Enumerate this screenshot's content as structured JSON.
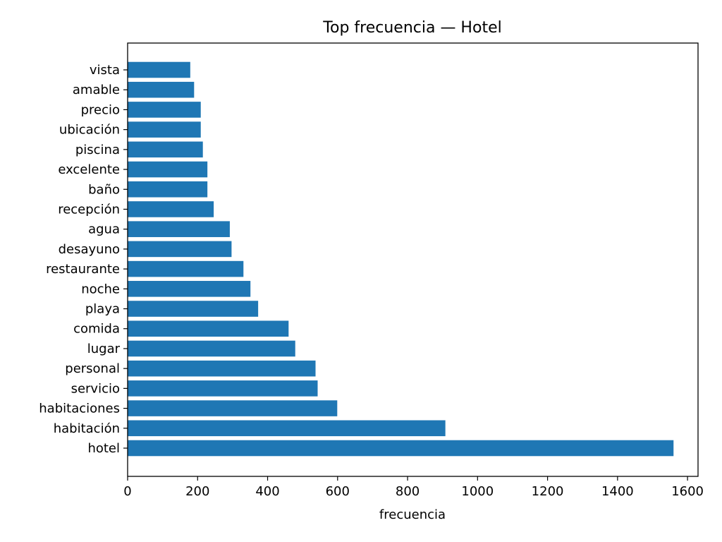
{
  "chart_data": {
    "type": "bar",
    "orientation": "horizontal",
    "title": "Top frecuencia — Hotel",
    "xlabel": "frecuencia",
    "ylabel": "",
    "xlim": [
      0,
      1630
    ],
    "xticks": [
      0,
      200,
      400,
      600,
      800,
      1000,
      1200,
      1400,
      1600
    ],
    "grid": false,
    "bar_color": "#1f77b4",
    "categories": [
      "hotel",
      "habitación",
      "habitaciones",
      "servicio",
      "personal",
      "lugar",
      "comida",
      "playa",
      "noche",
      "restaurante",
      "desayuno",
      "agua",
      "recepción",
      "baño",
      "excelente",
      "piscina",
      "ubicación",
      "precio",
      "amable",
      "vista"
    ],
    "values": [
      1560,
      908,
      599,
      543,
      537,
      479,
      460,
      373,
      351,
      331,
      297,
      292,
      246,
      228,
      228,
      215,
      209,
      209,
      190,
      179
    ]
  }
}
